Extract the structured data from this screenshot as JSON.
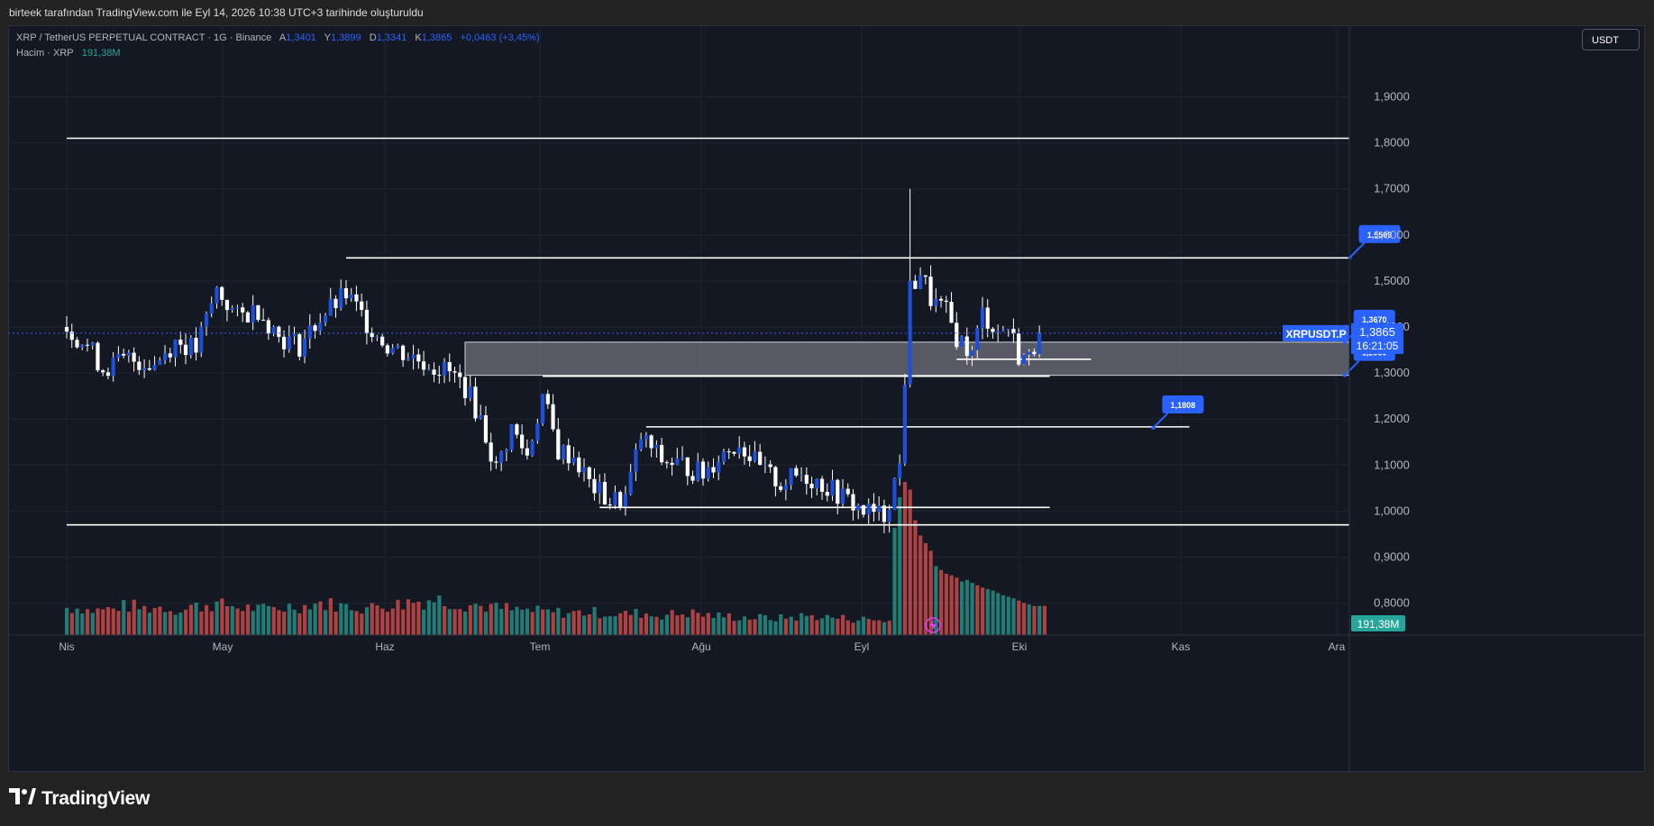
{
  "header": {
    "caption": "birteek tarafından TradingView.com ile Eyl 14, 2026 10:38 UTC+3 tarihinde oluşturuldu"
  },
  "legend": {
    "symbol_line": "XRP / TetherUS PERPETUAL CONTRACT · 1G · Binance",
    "o_label": "A",
    "o_value": "1,3401",
    "h_label": "Y",
    "h_value": "1,3899",
    "l_label": "D",
    "l_value": "1,3341",
    "c_label": "K",
    "c_value": "1,3865",
    "change": "+0,0463 (+3,45%)",
    "volume_label": "Hacim · XRP",
    "volume_value": "191,38M"
  },
  "currency_button": "USDT",
  "footer": {
    "brand": "TradingView"
  },
  "colors": {
    "background": "#141823",
    "up_candle": "#1e4fd8",
    "down_candle": "#ffffff",
    "vol_up": "#26a69a",
    "vol_down": "#ef5350",
    "callout": "#2962ff",
    "zone": "#6a6d78"
  },
  "chart_data": {
    "type": "candlestick",
    "price_axis": {
      "ticks": [
        "1,9000",
        "1,8000",
        "1,7000",
        "1,6000",
        "1,5000",
        "1,4000",
        "1,3000",
        "1,2000",
        "1,1000",
        "1,0000",
        "0,9000",
        "0,8000"
      ],
      "range": [
        0.72,
        2.0
      ]
    },
    "time_axis": {
      "ticks": [
        "Nis",
        "May",
        "Haz",
        "Tem",
        "Ağu",
        "Eyl",
        "Eki",
        "Kas",
        "Ara"
      ]
    },
    "current_price": {
      "symbol": "XRPUSDT.P",
      "price": "1,3865",
      "countdown": "16:21:05"
    },
    "volume_badge": "191,38M",
    "horizontal_lines": [
      {
        "price": 1.81,
        "from_day": 0,
        "to_day": 275
      },
      {
        "price": 0.97,
        "from_day": 0,
        "to_day": 275
      },
      {
        "price": 1.55,
        "from_day": 54,
        "to_day": 275
      },
      {
        "price": 1.293,
        "from_day": 92,
        "to_day": 190
      },
      {
        "price": 1.183,
        "from_day": 112,
        "to_day": 217
      },
      {
        "price": 1.008,
        "from_day": 103,
        "to_day": 190
      },
      {
        "price": 1.33,
        "from_day": 172,
        "to_day": 198
      }
    ],
    "zone": {
      "from_day": 77,
      "to_day": 275,
      "top": 1.367,
      "bottom": 1.295
    },
    "callouts": [
      {
        "label": "1,5509",
        "price": 1.5509,
        "day": 248
      },
      {
        "label": "1,3670",
        "price": 1.367,
        "day": 247
      },
      {
        "label": "1,2950",
        "price": 1.295,
        "day": 247
      },
      {
        "label": "1,1808",
        "price": 1.1808,
        "day": 210
      }
    ],
    "path": [
      [
        0,
        1.4
      ],
      [
        4,
        1.36
      ],
      [
        7,
        1.31
      ],
      [
        12,
        1.33
      ],
      [
        17,
        1.32
      ],
      [
        21,
        1.37
      ],
      [
        25,
        1.35
      ],
      [
        29,
        1.48
      ],
      [
        33,
        1.42
      ],
      [
        37,
        1.44
      ],
      [
        41,
        1.38
      ],
      [
        45,
        1.36
      ],
      [
        49,
        1.42
      ],
      [
        54,
        1.47
      ],
      [
        58,
        1.41
      ],
      [
        62,
        1.36
      ],
      [
        66,
        1.34
      ],
      [
        70,
        1.32
      ],
      [
        74,
        1.3
      ],
      [
        77,
        1.27
      ],
      [
        80,
        1.2
      ],
      [
        83,
        1.09
      ],
      [
        86,
        1.18
      ],
      [
        89,
        1.12
      ],
      [
        92,
        1.25
      ],
      [
        95,
        1.13
      ],
      [
        98,
        1.12
      ],
      [
        101,
        1.06
      ],
      [
        105,
        1.02
      ],
      [
        108,
        1.03
      ],
      [
        111,
        1.16
      ],
      [
        115,
        1.11
      ],
      [
        119,
        1.1
      ],
      [
        123,
        1.08
      ],
      [
        126,
        1.12
      ],
      [
        130,
        1.15
      ],
      [
        134,
        1.09
      ],
      [
        138,
        1.06
      ],
      [
        142,
        1.08
      ],
      [
        146,
        1.06
      ],
      [
        150,
        1.03
      ],
      [
        154,
        1.0
      ],
      [
        158,
        0.99
      ],
      [
        161,
        1.1
      ],
      [
        163,
        1.48
      ],
      [
        165,
        1.52
      ],
      [
        167,
        1.46
      ],
      [
        170,
        1.43
      ],
      [
        172,
        1.38
      ],
      [
        175,
        1.34
      ],
      [
        177,
        1.43
      ],
      [
        180,
        1.39
      ],
      [
        182,
        1.4
      ],
      [
        184,
        1.34
      ],
      [
        186,
        1.33
      ],
      [
        188,
        1.387
      ]
    ],
    "volume": {
      "base": [
        55,
        50,
        52,
        58,
        54,
        56,
        52,
        58,
        62,
        60,
        55,
        52,
        55,
        58,
        65,
        62,
        58,
        55,
        60,
        62,
        68,
        72,
        66,
        62,
        58,
        54,
        50,
        48,
        46,
        45,
        46,
        44,
        42,
        44,
        40,
        42,
        44,
        40,
        38,
        36,
        35,
        34,
        36,
        38,
        36,
        34,
        32,
        30,
        28,
        30
      ],
      "spike": [
        140,
        180,
        200,
        190,
        150,
        130,
        120,
        110,
        90,
        85,
        80,
        78,
        75,
        70,
        72,
        68,
        65,
        62,
        60,
        58,
        55,
        52,
        50,
        48,
        45,
        42,
        40,
        38
      ],
      "spike_start_day": 160,
      "last_day": 189
    }
  }
}
